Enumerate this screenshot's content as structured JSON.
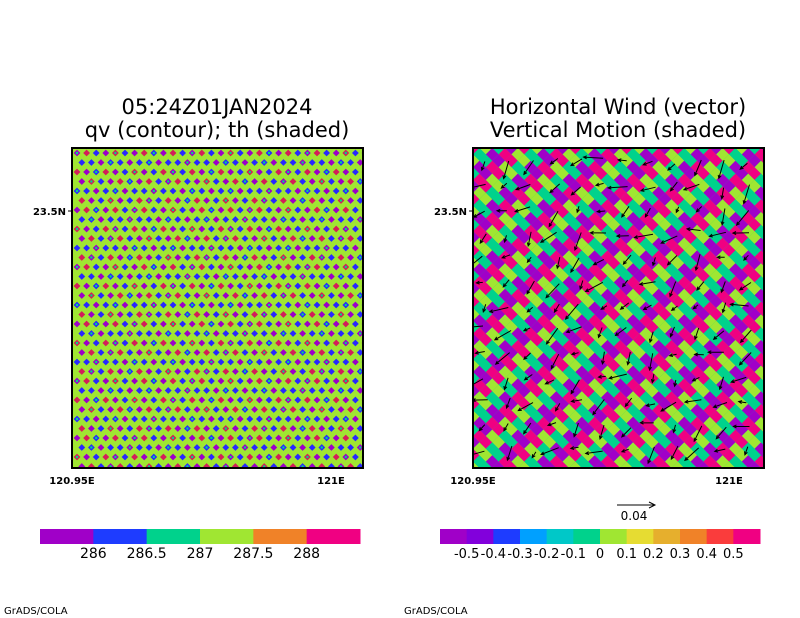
{
  "chart_data": [
    {
      "type": "heatmap",
      "title_lines": [
        "05:24Z01JAN2024",
        "qv (contour); th (shaded)"
      ],
      "x_ticks": [
        "120.95E",
        "121E"
      ],
      "y_ticks": [
        "23.5N"
      ],
      "shading_colors": [
        "#a0e632",
        "#2828ff",
        "#9b00c8",
        "#d21e5a",
        "#00d28c"
      ],
      "colorbar": {
        "colors": [
          "#a000c8",
          "#1e3cff",
          "#00d28c",
          "#a0e632",
          "#f08228",
          "#f00082"
        ],
        "labels": [
          "286",
          "286.5",
          "287",
          "287.5",
          "288"
        ]
      },
      "credit": "GrADS/COLA"
    },
    {
      "type": "heatmap",
      "title_lines": [
        "Horizontal Wind (vector)",
        "Vertical Motion (shaded)"
      ],
      "x_ticks": [
        "120.95E",
        "121E"
      ],
      "y_ticks": [
        "23.5N"
      ],
      "shading_colors": [
        "#f00082",
        "#a0e632",
        "#00d28c",
        "#a000c8"
      ],
      "vector_reference": "0.04",
      "colorbar": {
        "colors": [
          "#a000c8",
          "#8200dc",
          "#1e3cff",
          "#00a0ff",
          "#00c8c8",
          "#00d28c",
          "#a0e632",
          "#e6dc32",
          "#e6af2d",
          "#f08228",
          "#fa3c3c",
          "#f00082"
        ],
        "labels": [
          "-0.5",
          "-0.4",
          "-0.3",
          "-0.2",
          "-0.1",
          "0",
          "0.1",
          "0.2",
          "0.3",
          "0.4",
          "0.5"
        ]
      },
      "credit": "GrADS/COLA"
    }
  ]
}
